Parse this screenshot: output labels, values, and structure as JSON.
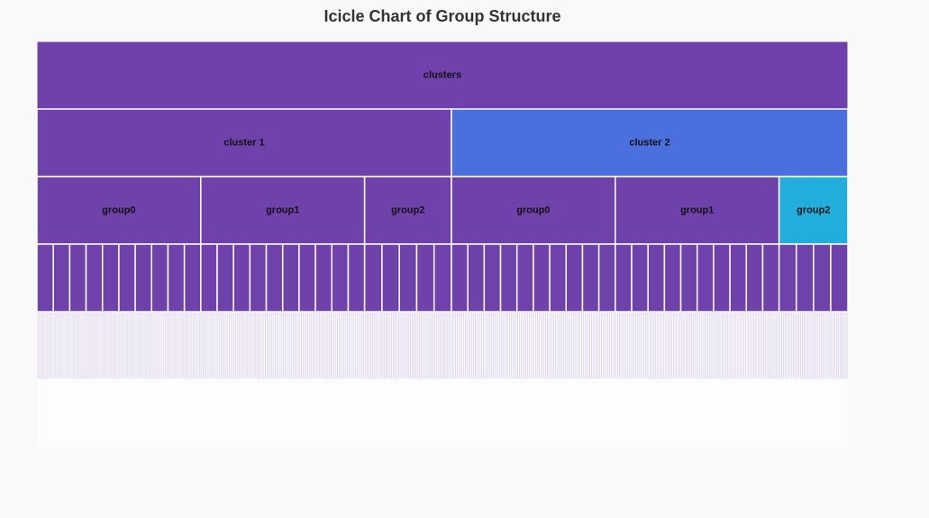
{
  "chart_data": {
    "type": "icicle",
    "title": "Icicle Chart of Group Structure",
    "colors": {
      "default": "#6f42ab",
      "highlight_level1": "#4b6fdc",
      "highlight_level2": "#22aedb",
      "leaf_faint": "#e4ddf1",
      "leaf_fainter": "#fcfdfd",
      "border": "#ffffff"
    },
    "root": {
      "name": "clusters",
      "children": [
        {
          "name": "cluster 1",
          "children": [
            {
              "name": "group0",
              "weight": 10,
              "leaves": 10
            },
            {
              "name": "group1",
              "weight": 10,
              "leaves": 10
            },
            {
              "name": "group2",
              "weight": 5.3,
              "leaves": 5
            }
          ]
        },
        {
          "name": "cluster 2",
          "highlight": 1,
          "children": [
            {
              "name": "group0",
              "weight": 10,
              "leaves": 10
            },
            {
              "name": "group1",
              "weight": 10,
              "leaves": 10
            },
            {
              "name": "group2",
              "weight": 4.2,
              "leaves": 4,
              "highlight": 2
            }
          ]
        }
      ]
    }
  }
}
